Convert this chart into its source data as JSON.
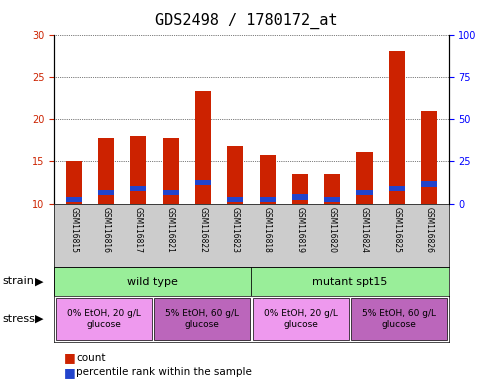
{
  "title": "GDS2498 / 1780172_at",
  "samples": [
    "GSM116815",
    "GSM116816",
    "GSM116817",
    "GSM116821",
    "GSM116822",
    "GSM116823",
    "GSM116818",
    "GSM116819",
    "GSM116820",
    "GSM116824",
    "GSM116825",
    "GSM116826"
  ],
  "count_values": [
    15.0,
    17.7,
    18.0,
    17.7,
    23.3,
    16.8,
    15.7,
    13.5,
    13.5,
    16.1,
    28.1,
    21.0
  ],
  "percentile_values": [
    10.5,
    11.3,
    11.8,
    11.3,
    12.5,
    10.5,
    10.5,
    10.8,
    10.5,
    11.3,
    11.8,
    12.3
  ],
  "blue_bar_height": 0.65,
  "ylim_left": [
    10,
    30
  ],
  "ylim_right": [
    0,
    100
  ],
  "yticks_left": [
    10,
    15,
    20,
    25,
    30
  ],
  "yticks_right": [
    0,
    25,
    50,
    75,
    100
  ],
  "bar_color_red": "#cc2200",
  "bar_color_blue": "#2244cc",
  "strain_labels": [
    "wild type",
    "mutant spt15"
  ],
  "strain_ranges": [
    [
      0,
      6
    ],
    [
      6,
      12
    ]
  ],
  "strain_color": "#99ee99",
  "stress_labels": [
    "0% EtOH, 20 g/L\nglucose",
    "5% EtOH, 60 g/L\nglucose",
    "0% EtOH, 20 g/L\nglucose",
    "5% EtOH, 60 g/L\nglucose"
  ],
  "stress_ranges": [
    [
      0,
      3
    ],
    [
      3,
      6
    ],
    [
      6,
      9
    ],
    [
      9,
      12
    ]
  ],
  "stress_colors": [
    "#ee99ee",
    "#bb66bb",
    "#ee99ee",
    "#bb66bb"
  ],
  "tick_bg_color": "#cccccc",
  "legend_count_color": "#cc2200",
  "legend_percentile_color": "#2244cc",
  "title_fontsize": 11,
  "tick_fontsize": 7,
  "annotation_fontsize": 8
}
